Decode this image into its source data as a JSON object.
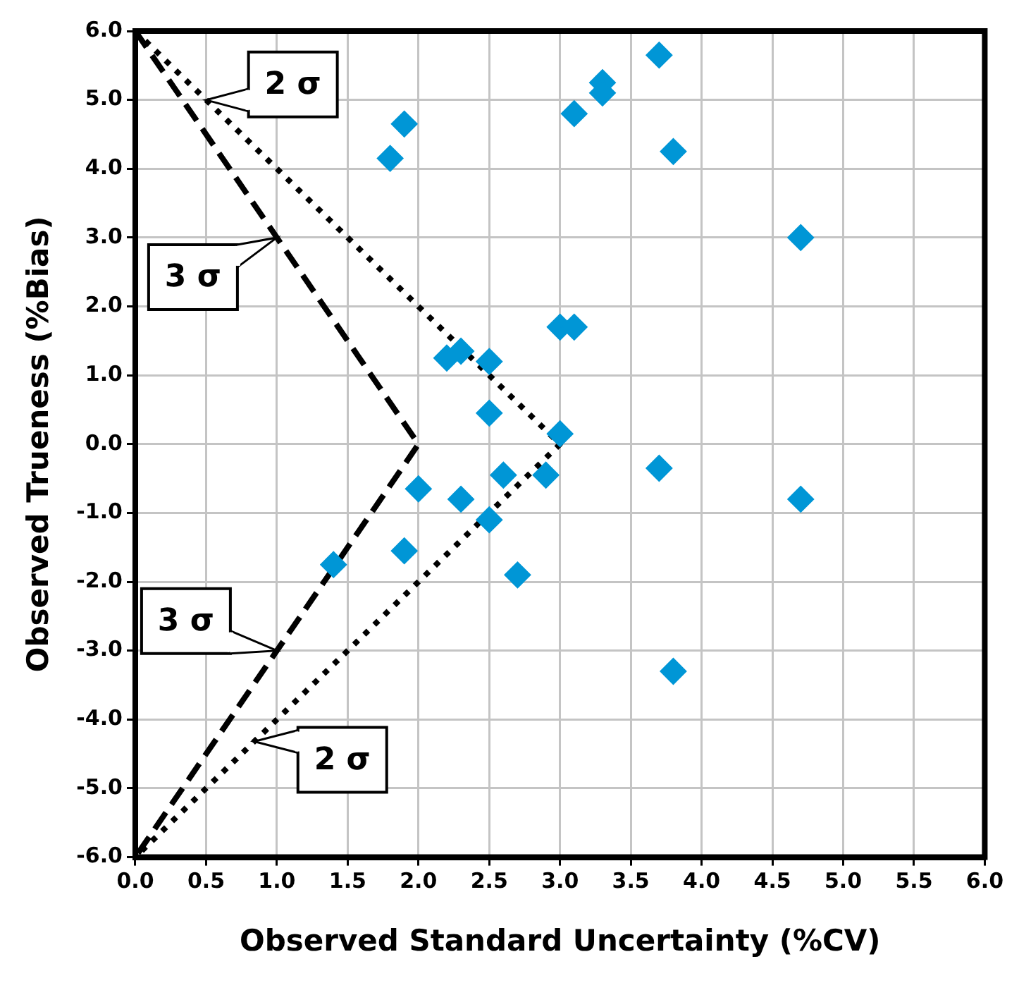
{
  "chart_data": {
    "type": "scatter",
    "xlabel": "Observed Standard Uncertainty (%CV)",
    "ylabel": "Observed Trueness (%Bias)",
    "xlim": [
      0,
      6
    ],
    "ylim": [
      -6,
      6
    ],
    "xticks": [
      {
        "value": 0,
        "label": "0.0"
      },
      {
        "value": 0.5,
        "label": "0.5"
      },
      {
        "value": 1,
        "label": "1.0"
      },
      {
        "value": 1.5,
        "label": "1.5"
      },
      {
        "value": 2,
        "label": "2.0"
      },
      {
        "value": 2.5,
        "label": "2.5"
      },
      {
        "value": 3,
        "label": "3.0"
      },
      {
        "value": 3.5,
        "label": "3.5"
      },
      {
        "value": 4,
        "label": "4.0"
      },
      {
        "value": 4.5,
        "label": "4.5"
      },
      {
        "value": 5,
        "label": "5.0"
      },
      {
        "value": 5.5,
        "label": "5.5"
      },
      {
        "value": 6,
        "label": "6.0"
      }
    ],
    "yticks": [
      {
        "value": -6,
        "label": "-6.0"
      },
      {
        "value": -5,
        "label": "-5.0"
      },
      {
        "value": -4,
        "label": "-4.0"
      },
      {
        "value": -3,
        "label": "-3.0"
      },
      {
        "value": -2,
        "label": "-2.0"
      },
      {
        "value": -1,
        "label": "-1.0"
      },
      {
        "value": 0,
        "label": "0.0"
      },
      {
        "value": 1,
        "label": "1.0"
      },
      {
        "value": 2,
        "label": "2.0"
      },
      {
        "value": 3,
        "label": "3.0"
      },
      {
        "value": 4,
        "label": "4.0"
      },
      {
        "value": 5,
        "label": "5.0"
      },
      {
        "value": 6,
        "label": "6.0"
      }
    ],
    "grid": true,
    "legend": false,
    "series": [
      {
        "type": "scatter",
        "marker": "diamond",
        "color": "#0096d6",
        "x": [
          1.9,
          1.8,
          3.1,
          3.3,
          3.3,
          3.7,
          3.8,
          4.7,
          3.0,
          3.1,
          2.2,
          2.3,
          2.5,
          2.5,
          3.0,
          2.0,
          2.3,
          2.6,
          2.9,
          2.5,
          1.9,
          1.4,
          2.7,
          3.7,
          4.7,
          3.8
        ],
        "values": [
          4.65,
          4.15,
          4.8,
          5.25,
          5.1,
          5.65,
          4.25,
          3.0,
          1.7,
          1.7,
          1.25,
          1.35,
          1.2,
          0.45,
          0.15,
          -0.65,
          -0.8,
          -0.45,
          -0.45,
          -1.1,
          -1.55,
          -1.75,
          -1.9,
          -0.35,
          -0.8,
          -3.3
        ]
      },
      {
        "type": "line",
        "name": "2 σ",
        "color": "#000000",
        "line_style": "dotted",
        "marker": "none",
        "x": [
          0,
          3,
          0
        ],
        "values": [
          6,
          0,
          -6
        ]
      },
      {
        "type": "line",
        "name": "3 σ",
        "color": "#000000",
        "line_style": "dashed",
        "marker": "none",
        "x": [
          0,
          2,
          0
        ],
        "values": [
          6,
          0,
          -6
        ]
      }
    ]
  }
}
